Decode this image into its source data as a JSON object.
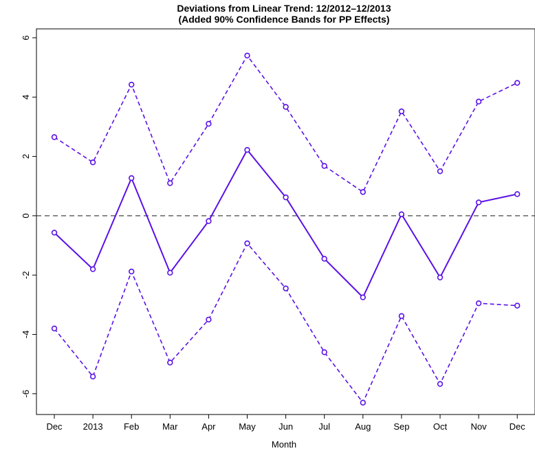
{
  "chart_data": {
    "type": "line",
    "title": "Deviations from Linear Trend: 12/2012–12/2013",
    "subtitle": "(Added 90% Confidence Bands for PP Effects)",
    "xlabel": "Month",
    "ylabel": "",
    "categories": [
      "Dec",
      "2013",
      "Feb",
      "Mar",
      "Apr",
      "May",
      "Jun",
      "Jul",
      "Aug",
      "Sep",
      "Oct",
      "Nov",
      "Dec"
    ],
    "ylim": [
      -6.7,
      6.3
    ],
    "yticks": [
      -6,
      -4,
      -2,
      0,
      2,
      4,
      6
    ],
    "reference_line": 0,
    "grid": false,
    "series": [
      {
        "role": "estimate",
        "style": "solid",
        "color": "#5a10e6",
        "values": [
          -0.57,
          -1.8,
          1.27,
          -1.92,
          -0.18,
          2.22,
          0.62,
          -1.45,
          -2.75,
          0.05,
          -2.08,
          0.45,
          0.73
        ]
      },
      {
        "role": "upper-band",
        "style": "dashed",
        "color": "#5a10e6",
        "values": [
          2.65,
          1.8,
          4.42,
          1.1,
          3.1,
          5.4,
          3.67,
          1.68,
          0.8,
          3.52,
          1.5,
          3.85,
          4.48
        ]
      },
      {
        "role": "lower-band",
        "style": "dashed",
        "color": "#5a10e6",
        "values": [
          -3.8,
          -5.42,
          -1.88,
          -4.95,
          -3.5,
          -0.93,
          -2.45,
          -4.6,
          -6.3,
          -3.38,
          -5.67,
          -2.95,
          -3.03
        ]
      }
    ]
  }
}
